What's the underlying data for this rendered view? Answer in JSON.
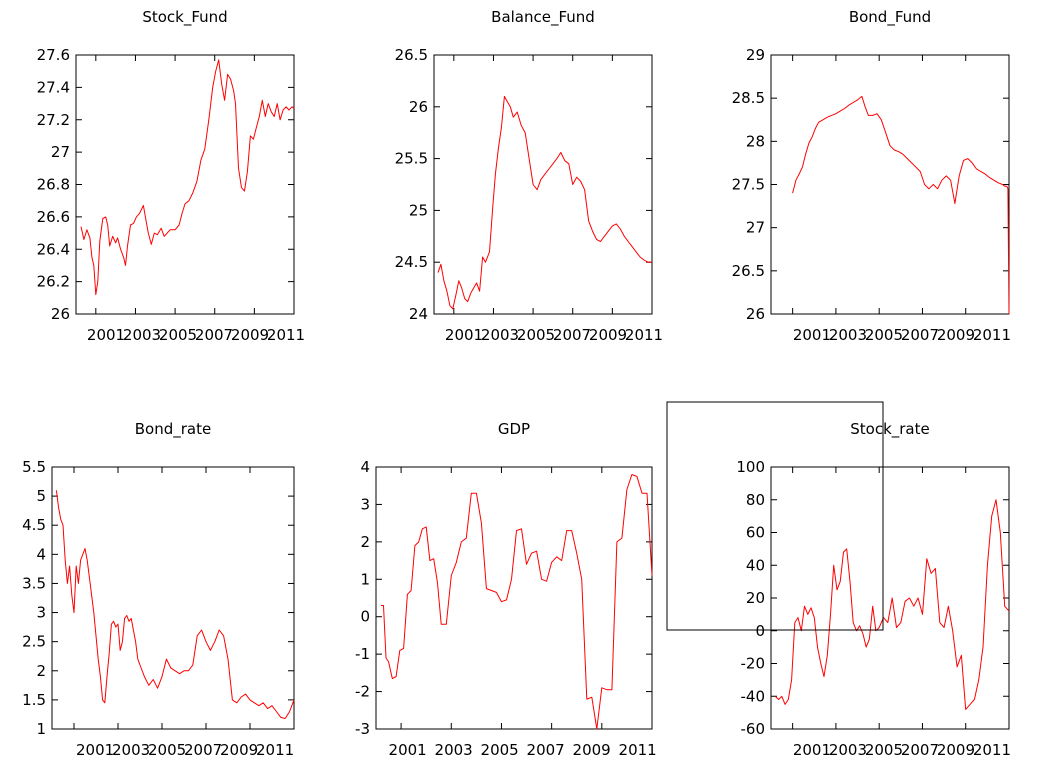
{
  "colors": {
    "series": "#ff0000",
    "axes": "#000000",
    "background": "#ffffff"
  },
  "chart_data": [
    {
      "type": "line",
      "title": "Stock_Fund",
      "xlim": [
        2000,
        2011
      ],
      "ylim": [
        26,
        27.6
      ],
      "xticks": [
        2001,
        2003,
        2005,
        2007,
        2009,
        2011
      ],
      "xtick_labels": [
        "2001",
        "2003",
        "2005",
        "2007",
        "2009",
        "2011"
      ],
      "xtick_label_gap": 0,
      "yticks": [
        26,
        26.2,
        26.4,
        26.6,
        26.8,
        27,
        27.2,
        27.4,
        27.6
      ],
      "ytick_labels": [
        "26",
        "26.2",
        "26.4",
        "26.6",
        "26.8",
        "27",
        "27.2",
        "27.4",
        "27.6"
      ],
      "x": [
        2000.25,
        2000.4,
        2000.55,
        2000.7,
        2000.8,
        2000.9,
        2001.0,
        2001.1,
        2001.2,
        2001.35,
        2001.5,
        2001.6,
        2001.7,
        2001.85,
        2002.0,
        2002.1,
        2002.25,
        2002.4,
        2002.5,
        2002.6,
        2002.75,
        2002.9,
        2003.05,
        2003.2,
        2003.4,
        2003.5,
        2003.65,
        2003.8,
        2003.95,
        2004.1,
        2004.3,
        2004.45,
        2004.6,
        2004.75,
        2004.9,
        2005.0,
        2005.2,
        2005.35,
        2005.5,
        2005.7,
        2005.9,
        2006.1,
        2006.3,
        2006.5,
        2006.7,
        2006.9,
        2007.05,
        2007.2,
        2007.35,
        2007.5,
        2007.65,
        2007.8,
        2007.95,
        2008.05,
        2008.2,
        2008.35,
        2008.5,
        2008.65,
        2008.8,
        2008.95,
        2009.1,
        2009.25,
        2009.4,
        2009.55,
        2009.7,
        2009.85,
        2010.0,
        2010.15,
        2010.3,
        2010.45,
        2010.6,
        2010.75,
        2010.9,
        2011.0
      ],
      "y": [
        26.54,
        26.46,
        26.52,
        26.47,
        26.35,
        26.3,
        26.12,
        26.2,
        26.45,
        26.59,
        26.6,
        26.55,
        26.42,
        26.48,
        26.44,
        26.47,
        26.4,
        26.35,
        26.3,
        26.42,
        26.55,
        26.56,
        26.6,
        26.62,
        26.67,
        26.6,
        26.5,
        26.43,
        26.5,
        26.49,
        26.53,
        26.48,
        26.5,
        26.52,
        26.52,
        26.52,
        26.55,
        26.62,
        26.68,
        26.7,
        26.75,
        26.82,
        26.95,
        27.02,
        27.2,
        27.4,
        27.5,
        27.57,
        27.42,
        27.32,
        27.48,
        27.45,
        27.38,
        27.3,
        26.9,
        26.78,
        26.76,
        26.88,
        27.1,
        27.08,
        27.15,
        27.22,
        27.32,
        27.22,
        27.3,
        27.25,
        27.22,
        27.3,
        27.2,
        27.26,
        27.28,
        27.26,
        27.28,
        27.27
      ]
    },
    {
      "type": "line",
      "title": "Balance_Fund",
      "xlim": [
        2000,
        2011
      ],
      "ylim": [
        24,
        26.5
      ],
      "xticks": [
        2001,
        2003,
        2005,
        2007,
        2009,
        2011
      ],
      "xtick_labels": [
        "2001",
        "2003",
        "2005",
        "2007",
        "2009",
        "2011"
      ],
      "xtick_label_gap": 0,
      "yticks": [
        24,
        24.5,
        25,
        25.5,
        26,
        26.5
      ],
      "ytick_labels": [
        "24",
        "24.5",
        "25",
        "25.5",
        "26",
        "26.5"
      ],
      "x": [
        2000.2,
        2000.35,
        2000.5,
        2000.65,
        2000.8,
        2000.95,
        2001.1,
        2001.25,
        2001.4,
        2001.55,
        2001.7,
        2001.85,
        2002.0,
        2002.15,
        2002.3,
        2002.45,
        2002.6,
        2002.8,
        2002.95,
        2003.1,
        2003.25,
        2003.4,
        2003.55,
        2003.7,
        2003.85,
        2004.0,
        2004.2,
        2004.4,
        2004.6,
        2004.8,
        2005.0,
        2005.2,
        2005.4,
        2005.6,
        2005.8,
        2006.0,
        2006.2,
        2006.4,
        2006.6,
        2006.8,
        2007.0,
        2007.2,
        2007.4,
        2007.6,
        2007.8,
        2008.0,
        2008.2,
        2008.4,
        2008.6,
        2008.8,
        2009.0,
        2009.2,
        2009.4,
        2009.6,
        2009.8,
        2010.0,
        2010.2,
        2010.4,
        2010.6,
        2010.8,
        2011.0
      ],
      "y": [
        24.4,
        24.48,
        24.32,
        24.22,
        24.08,
        24.05,
        24.18,
        24.32,
        24.25,
        24.15,
        24.12,
        24.2,
        24.25,
        24.3,
        24.22,
        24.55,
        24.5,
        24.6,
        25.0,
        25.35,
        25.6,
        25.8,
        26.1,
        26.05,
        26.0,
        25.9,
        25.95,
        25.82,
        25.75,
        25.5,
        25.25,
        25.2,
        25.3,
        25.35,
        25.4,
        25.45,
        25.5,
        25.56,
        25.48,
        25.45,
        25.25,
        25.32,
        25.28,
        25.2,
        24.9,
        24.8,
        24.72,
        24.7,
        24.75,
        24.8,
        24.85,
        24.87,
        24.82,
        24.75,
        24.7,
        24.65,
        24.6,
        24.55,
        24.52,
        24.5,
        24.5
      ]
    },
    {
      "type": "line",
      "title": "Bond_Fund",
      "xlim": [
        2000,
        2011
      ],
      "ylim": [
        26,
        29
      ],
      "xticks": [
        2001,
        2003,
        2005,
        2007,
        2009,
        2011
      ],
      "xtick_labels": [
        "2001",
        "2003",
        "2005",
        "2007",
        "2009",
        "2011"
      ],
      "xtick_label_gap": 0,
      "yticks": [
        26,
        26.5,
        27,
        27.5,
        28,
        28.5,
        29
      ],
      "ytick_labels": [
        "26",
        "26.5",
        "27",
        "27.5",
        "28",
        "28.5",
        "29"
      ],
      "x": [
        2001.0,
        2001.15,
        2001.3,
        2001.45,
        2001.6,
        2001.75,
        2001.9,
        2002.05,
        2002.2,
        2002.4,
        2002.6,
        2002.8,
        2003.0,
        2003.2,
        2003.4,
        2003.6,
        2003.8,
        2004.0,
        2004.2,
        2004.35,
        2004.5,
        2004.7,
        2004.9,
        2005.1,
        2005.3,
        2005.5,
        2005.7,
        2005.9,
        2006.1,
        2006.3,
        2006.5,
        2006.7,
        2006.9,
        2007.1,
        2007.3,
        2007.5,
        2007.7,
        2007.9,
        2008.1,
        2008.3,
        2008.5,
        2008.7,
        2008.9,
        2009.1,
        2009.3,
        2009.5,
        2009.7,
        2009.9,
        2010.1,
        2010.3,
        2010.5,
        2010.7,
        2010.8,
        2010.9,
        2010.95,
        2011.0
      ],
      "y": [
        27.4,
        27.55,
        27.62,
        27.7,
        27.85,
        27.98,
        28.05,
        28.15,
        28.22,
        28.25,
        28.28,
        28.3,
        28.32,
        28.35,
        28.38,
        28.42,
        28.45,
        28.48,
        28.52,
        28.4,
        28.3,
        28.3,
        28.32,
        28.25,
        28.1,
        27.95,
        27.9,
        27.88,
        27.85,
        27.8,
        27.75,
        27.7,
        27.65,
        27.5,
        27.45,
        27.5,
        27.45,
        27.55,
        27.6,
        27.55,
        27.28,
        27.6,
        27.78,
        27.8,
        27.75,
        27.68,
        27.65,
        27.62,
        27.58,
        27.55,
        27.52,
        27.5,
        27.48,
        27.48,
        27.45,
        26.0
      ]
    },
    {
      "type": "line",
      "title": "Bond_rate",
      "xlim": [
        2000,
        2011
      ],
      "ylim": [
        1,
        5.5
      ],
      "xticks": [
        2001,
        2003,
        2005,
        2007,
        2009,
        2011
      ],
      "xtick_labels": [
        "2001",
        "2003",
        "2005",
        "2007",
        "2009",
        "2011"
      ],
      "xtick_label_gap": 0,
      "yticks": [
        1,
        1.5,
        2,
        2.5,
        3,
        3.5,
        4,
        4.5,
        5,
        5.5
      ],
      "ytick_labels": [
        "1",
        "1.5",
        "2",
        "2.5",
        "3",
        "3.5",
        "4",
        "4.5",
        "5",
        "5.5"
      ],
      "x": [
        2000.2,
        2000.3,
        2000.4,
        2000.5,
        2000.6,
        2000.7,
        2000.8,
        2000.9,
        2001.0,
        2001.1,
        2001.2,
        2001.3,
        2001.4,
        2001.5,
        2001.6,
        2001.7,
        2001.8,
        2001.9,
        2002.0,
        2002.1,
        2002.2,
        2002.3,
        2002.4,
        2002.5,
        2002.6,
        2002.7,
        2002.8,
        2002.9,
        2003.0,
        2003.1,
        2003.2,
        2003.3,
        2003.4,
        2003.5,
        2003.6,
        2003.7,
        2003.8,
        2003.9,
        2004.0,
        2004.2,
        2004.4,
        2004.6,
        2004.8,
        2005.0,
        2005.2,
        2005.4,
        2005.6,
        2005.8,
        2006.0,
        2006.2,
        2006.4,
        2006.6,
        2006.8,
        2007.0,
        2007.2,
        2007.4,
        2007.6,
        2007.8,
        2008.0,
        2008.2,
        2008.4,
        2008.6,
        2008.8,
        2009.0,
        2009.2,
        2009.4,
        2009.6,
        2009.8,
        2010.0,
        2010.2,
        2010.4,
        2010.6,
        2010.8,
        2011.0
      ],
      "y": [
        5.1,
        4.8,
        4.6,
        4.5,
        3.9,
        3.5,
        3.8,
        3.3,
        3.0,
        3.8,
        3.5,
        3.9,
        4.0,
        4.1,
        3.9,
        3.6,
        3.3,
        3.0,
        2.6,
        2.2,
        1.9,
        1.5,
        1.45,
        1.9,
        2.3,
        2.8,
        2.85,
        2.75,
        2.8,
        2.35,
        2.5,
        2.9,
        2.95,
        2.85,
        2.9,
        2.7,
        2.5,
        2.2,
        2.1,
        1.9,
        1.75,
        1.85,
        1.7,
        1.9,
        2.2,
        2.05,
        2.0,
        1.95,
        2.0,
        2.0,
        2.1,
        2.6,
        2.7,
        2.5,
        2.35,
        2.5,
        2.7,
        2.6,
        2.2,
        1.5,
        1.45,
        1.55,
        1.6,
        1.5,
        1.45,
        1.4,
        1.45,
        1.35,
        1.4,
        1.3,
        1.2,
        1.18,
        1.3,
        1.5
      ]
    },
    {
      "type": "line",
      "title": "GDP",
      "xlim": [
        2000,
        2011
      ],
      "ylim": [
        -3,
        4
      ],
      "xticks": [
        2001,
        2003,
        2005,
        2007,
        2009,
        2011
      ],
      "xtick_labels": [
        "2001",
        "2003",
        "2005",
        "2007",
        "2009",
        "2011"
      ],
      "xtick_label_gap": 10,
      "yticks": [
        -3,
        -2,
        -1,
        0,
        1,
        2,
        3,
        4
      ],
      "ytick_labels": [
        "-3",
        "-2",
        "-1",
        "0",
        "1",
        "2",
        "3",
        "4"
      ],
      "x": [
        2000.2,
        2000.3,
        2000.4,
        2000.5,
        2000.65,
        2000.8,
        2000.95,
        2001.1,
        2001.25,
        2001.4,
        2001.55,
        2001.7,
        2001.85,
        2002.0,
        2002.15,
        2002.3,
        2002.45,
        2002.6,
        2002.8,
        2003.0,
        2003.2,
        2003.4,
        2003.6,
        2003.8,
        2004.0,
        2004.2,
        2004.4,
        2004.6,
        2004.8,
        2005.0,
        2005.2,
        2005.4,
        2005.6,
        2005.8,
        2006.0,
        2006.2,
        2006.4,
        2006.6,
        2006.8,
        2007.0,
        2007.2,
        2007.4,
        2007.6,
        2007.8,
        2008.0,
        2008.2,
        2008.4,
        2008.6,
        2008.8,
        2009.0,
        2009.2,
        2009.4,
        2009.6,
        2009.8,
        2010.0,
        2010.2,
        2010.4,
        2010.6,
        2010.8,
        2011.0
      ],
      "y": [
        0.3,
        0.3,
        -1.1,
        -1.2,
        -1.65,
        -1.6,
        -0.9,
        -0.85,
        0.6,
        0.7,
        1.9,
        2.0,
        2.35,
        2.4,
        1.5,
        1.55,
        0.9,
        -0.2,
        -0.2,
        1.1,
        1.45,
        2.0,
        2.1,
        3.3,
        3.3,
        2.5,
        0.75,
        0.7,
        0.65,
        0.4,
        0.45,
        1.0,
        2.3,
        2.35,
        1.4,
        1.7,
        1.75,
        1.0,
        0.95,
        1.45,
        1.6,
        1.5,
        2.3,
        2.3,
        1.7,
        1.0,
        -2.2,
        -2.15,
        -3.0,
        -1.9,
        -1.95,
        -1.95,
        2.0,
        2.1,
        3.4,
        3.8,
        3.75,
        3.3,
        3.3,
        1.1
      ]
    },
    {
      "type": "line",
      "title": "Stock_rate",
      "xlim": [
        2000,
        2011
      ],
      "ylim": [
        -60,
        100
      ],
      "xticks": [
        2001,
        2003,
        2005,
        2007,
        2009,
        2011
      ],
      "xtick_labels": [
        "2001",
        "2003",
        "2005",
        "2007",
        "2009",
        "2011"
      ],
      "xtick_label_gap": 0,
      "yticks": [
        -60,
        -40,
        -20,
        0,
        20,
        40,
        60,
        80,
        100
      ],
      "ytick_labels": [
        "-60",
        "-40",
        "-20",
        "0",
        "20",
        "40",
        "60",
        "80",
        "100"
      ],
      "x": [
        2000.2,
        2000.35,
        2000.5,
        2000.65,
        2000.8,
        2000.95,
        2001.1,
        2001.25,
        2001.4,
        2001.55,
        2001.7,
        2001.85,
        2002.0,
        2002.15,
        2002.3,
        2002.45,
        2002.6,
        2002.75,
        2002.9,
        2003.05,
        2003.2,
        2003.35,
        2003.5,
        2003.65,
        2003.8,
        2003.95,
        2004.1,
        2004.25,
        2004.4,
        2004.55,
        2004.7,
        2004.85,
        2005.0,
        2005.2,
        2005.4,
        2005.6,
        2005.8,
        2006.0,
        2006.2,
        2006.4,
        2006.6,
        2006.8,
        2007.0,
        2007.2,
        2007.4,
        2007.6,
        2007.8,
        2008.0,
        2008.2,
        2008.4,
        2008.6,
        2008.8,
        2009.0,
        2009.2,
        2009.4,
        2009.6,
        2009.8,
        2010.0,
        2010.2,
        2010.4,
        2010.6,
        2010.8,
        2011.0
      ],
      "y": [
        -40,
        -42,
        -40,
        -45,
        -42,
        -30,
        5,
        8,
        0,
        15,
        10,
        14,
        8,
        -10,
        -20,
        -28,
        -15,
        10,
        40,
        25,
        30,
        48,
        50,
        30,
        5,
        0,
        3,
        -2,
        -10,
        -5,
        15,
        0,
        2,
        8,
        5,
        20,
        2,
        5,
        18,
        20,
        15,
        20,
        10,
        44,
        35,
        38,
        5,
        2,
        15,
        0,
        -22,
        -15,
        -48,
        -45,
        -42,
        -30,
        -10,
        40,
        70,
        80,
        60,
        15,
        12
      ]
    }
  ]
}
